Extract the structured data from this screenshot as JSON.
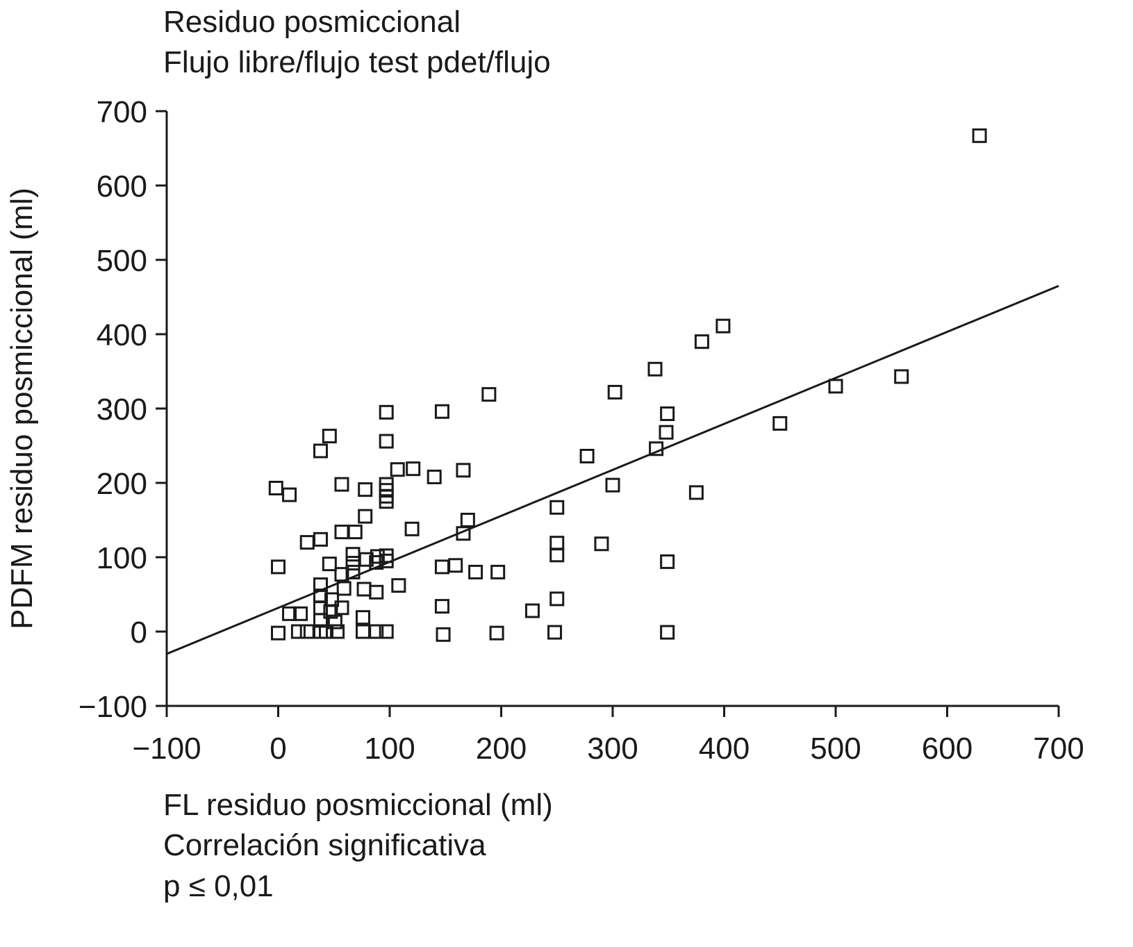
{
  "chart_data": {
    "type": "scatter",
    "title": "Residuo posmiccional",
    "subtitle": "Flujo libre/flujo test pdet/flujo",
    "xlabel": "FL residuo posmiccional (ml)",
    "ylabel": "PDFM residuo posmiccional (ml)",
    "annotations": [
      "Correlación significativa",
      "p ≤ 0,01"
    ],
    "xlim": [
      -100,
      700
    ],
    "ylim": [
      -100,
      700
    ],
    "xticks": [
      -100,
      0,
      100,
      200,
      300,
      400,
      500,
      600,
      700
    ],
    "yticks": [
      -100,
      0,
      100,
      200,
      300,
      400,
      500,
      600,
      700
    ],
    "xtick_labels": [
      "−100",
      "0",
      "100",
      "200",
      "300",
      "400",
      "500",
      "600",
      "700"
    ],
    "ytick_labels": [
      "−100",
      "0",
      "100",
      "200",
      "300",
      "400",
      "500",
      "600",
      "700"
    ],
    "grid": false,
    "marker": "open-square",
    "color": "#1a1a1a",
    "regression_line": {
      "x": [
        -100,
        700
      ],
      "y": [
        -30,
        465
      ]
    },
    "points": [
      [
        -2,
        193
      ],
      [
        10,
        184
      ],
      [
        0,
        87
      ],
      [
        0,
        -2
      ],
      [
        10,
        24
      ],
      [
        20,
        24
      ],
      [
        18,
        0
      ],
      [
        26,
        120
      ],
      [
        38,
        124
      ],
      [
        38,
        243
      ],
      [
        46,
        263
      ],
      [
        57,
        198
      ],
      [
        57,
        134
      ],
      [
        69,
        134
      ],
      [
        78,
        191
      ],
      [
        78,
        155
      ],
      [
        97,
        295
      ],
      [
        97,
        256
      ],
      [
        97,
        198
      ],
      [
        97,
        190
      ],
      [
        97,
        182
      ],
      [
        97,
        175
      ],
      [
        107,
        218
      ],
      [
        121,
        219
      ],
      [
        140,
        208
      ],
      [
        147,
        296
      ],
      [
        166,
        217
      ],
      [
        189,
        319
      ],
      [
        170,
        150
      ],
      [
        166,
        132
      ],
      [
        120,
        138
      ],
      [
        46,
        91
      ],
      [
        67,
        104
      ],
      [
        67,
        92
      ],
      [
        67,
        80
      ],
      [
        79,
        97
      ],
      [
        89,
        101
      ],
      [
        97,
        102
      ],
      [
        97,
        95
      ],
      [
        88,
        93
      ],
      [
        57,
        77
      ],
      [
        38,
        63
      ],
      [
        38,
        48
      ],
      [
        48,
        43
      ],
      [
        59,
        58
      ],
      [
        77,
        57
      ],
      [
        88,
        53
      ],
      [
        108,
        62
      ],
      [
        38,
        32
      ],
      [
        47,
        27
      ],
      [
        57,
        32
      ],
      [
        51,
        13
      ],
      [
        38,
        15
      ],
      [
        76,
        19
      ],
      [
        26,
        0
      ],
      [
        38,
        0
      ],
      [
        43,
        0
      ],
      [
        53,
        0
      ],
      [
        76,
        0
      ],
      [
        88,
        0
      ],
      [
        97,
        0
      ],
      [
        147,
        87
      ],
      [
        159,
        89
      ],
      [
        177,
        80
      ],
      [
        197,
        80
      ],
      [
        147,
        34
      ],
      [
        148,
        -4
      ],
      [
        196,
        -2
      ],
      [
        228,
        28
      ],
      [
        250,
        167
      ],
      [
        250,
        119
      ],
      [
        250,
        103
      ],
      [
        250,
        44
      ],
      [
        248,
        -1
      ],
      [
        290,
        118
      ],
      [
        277,
        236
      ],
      [
        300,
        197
      ],
      [
        302,
        322
      ],
      [
        338,
        353
      ],
      [
        339,
        246
      ],
      [
        348,
        268
      ],
      [
        349,
        293
      ],
      [
        349,
        94
      ],
      [
        349,
        -1
      ],
      [
        375,
        187
      ],
      [
        380,
        390
      ],
      [
        399,
        411
      ],
      [
        450,
        280
      ],
      [
        500,
        330
      ],
      [
        559,
        343
      ],
      [
        629,
        667
      ]
    ]
  }
}
